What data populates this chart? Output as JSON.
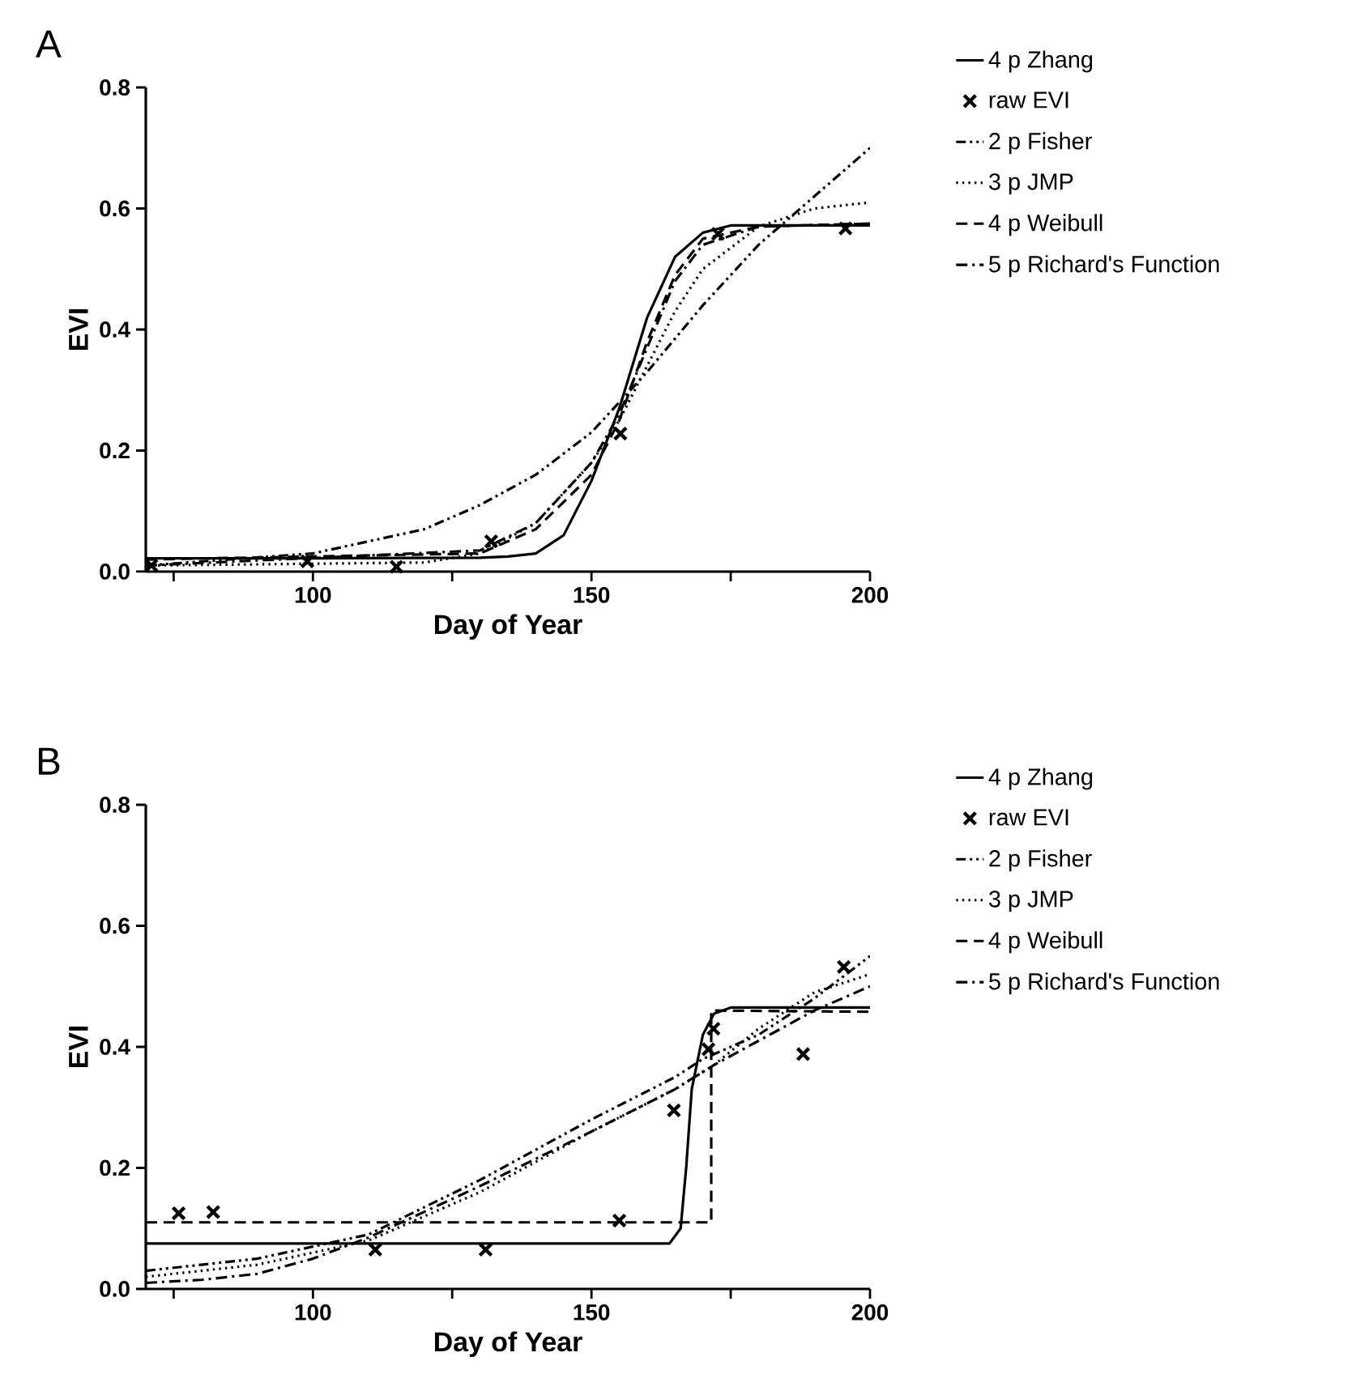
{
  "chart_data": [
    {
      "type": "line",
      "title": "A",
      "xlabel": "Day of Year",
      "ylabel": "EVI",
      "xlim": [
        70,
        200
      ],
      "ylim": [
        0,
        0.8
      ],
      "xticks": [
        {
          "value": 75,
          "label": null
        },
        100,
        {
          "value": 125,
          "label": null
        },
        150,
        {
          "value": 175,
          "label": null
        },
        200
      ],
      "yticks": [
        {
          "value": 0,
          "label": "0.0"
        },
        0.2,
        0.4,
        0.6,
        0.8
      ],
      "legend": "right",
      "series": [
        {
          "name": "4 p Zhang",
          "color": "#000000",
          "line_style": "solid",
          "x": [
            70,
            100,
            130,
            135,
            140,
            145,
            150,
            155,
            160,
            165,
            170,
            175,
            180,
            200
          ],
          "values": [
            0.022,
            0.022,
            0.023,
            0.025,
            0.03,
            0.06,
            0.15,
            0.27,
            0.42,
            0.52,
            0.56,
            0.572,
            0.572,
            0.572
          ]
        },
        {
          "name": "raw EVI",
          "type": "scatter",
          "marker": "cross",
          "color": "#000000",
          "x": [
            71,
            99,
            115,
            132,
            155.2,
            172.7,
            195.6
          ],
          "values": [
            0.01,
            0.017,
            0.008,
            0.05,
            0.228,
            0.558,
            0.567
          ]
        },
        {
          "name": "2 p Fisher",
          "color": "#000000",
          "line_style": "dashdotdot",
          "x": [
            70,
            100,
            120,
            130,
            140,
            150,
            160,
            170,
            180,
            190,
            200
          ],
          "values": [
            0.01,
            0.03,
            0.07,
            0.11,
            0.16,
            0.23,
            0.33,
            0.44,
            0.54,
            0.62,
            0.7
          ]
        },
        {
          "name": "3 p JMP",
          "color": "#000000",
          "line_style": "dotted",
          "x": [
            70,
            120,
            130,
            140,
            150,
            155,
            160,
            165,
            170,
            180,
            190,
            200
          ],
          "values": [
            0.01,
            0.015,
            0.03,
            0.08,
            0.18,
            0.25,
            0.34,
            0.43,
            0.5,
            0.57,
            0.6,
            0.61
          ]
        },
        {
          "name": "4 p Weibull",
          "color": "#000000",
          "line_style": "dashed",
          "x": [
            70,
            130,
            140,
            150,
            155,
            160,
            165,
            170,
            180,
            200
          ],
          "values": [
            0.02,
            0.03,
            0.07,
            0.16,
            0.25,
            0.38,
            0.49,
            0.55,
            0.57,
            0.575
          ]
        },
        {
          "name": "5 p Richard's Function",
          "color": "#000000",
          "line_style": "dashdot",
          "x": [
            70,
            130,
            140,
            150,
            155,
            160,
            165,
            170,
            180,
            200
          ],
          "values": [
            0.01,
            0.035,
            0.08,
            0.18,
            0.26,
            0.37,
            0.48,
            0.54,
            0.57,
            0.575
          ]
        }
      ]
    },
    {
      "type": "line",
      "title": "B",
      "xlabel": "Day of Year",
      "ylabel": "EVI",
      "xlim": [
        70,
        200
      ],
      "ylim": [
        0,
        0.8
      ],
      "xticks": [
        {
          "value": 75,
          "label": null
        },
        100,
        {
          "value": 125,
          "label": null
        },
        150,
        {
          "value": 175,
          "label": null
        },
        200
      ],
      "yticks": [
        {
          "value": 0,
          "label": "0.0"
        },
        0.2,
        0.4,
        0.6,
        0.8
      ],
      "legend": "right",
      "series": [
        {
          "name": "4 p Zhang",
          "color": "#000000",
          "line_style": "solid",
          "x": [
            70,
            164,
            166,
            167,
            168,
            170,
            172,
            175,
            200
          ],
          "values": [
            0.075,
            0.075,
            0.1,
            0.2,
            0.33,
            0.42,
            0.455,
            0.465,
            0.465
          ]
        },
        {
          "name": "raw EVI",
          "type": "scatter",
          "marker": "cross",
          "color": "#000000",
          "x": [
            75.9,
            82.1,
            111.2,
            131,
            155,
            164.8,
            171,
            171.9,
            188,
            195.3
          ],
          "values": [
            0.125,
            0.127,
            0.065,
            0.065,
            0.113,
            0.295,
            0.396,
            0.43,
            0.388,
            0.532
          ]
        },
        {
          "name": "2 p Fisher",
          "color": "#000000",
          "line_style": "dashdotdot",
          "x": [
            70,
            90,
            110,
            130,
            150,
            165,
            170,
            180,
            190,
            200
          ],
          "values": [
            0.03,
            0.05,
            0.09,
            0.18,
            0.28,
            0.35,
            0.38,
            0.42,
            0.48,
            0.55
          ]
        },
        {
          "name": "3 p JMP",
          "color": "#000000",
          "line_style": "dotted",
          "x": [
            70,
            90,
            110,
            130,
            150,
            165,
            172,
            180,
            190,
            200
          ],
          "values": [
            0.02,
            0.04,
            0.08,
            0.16,
            0.26,
            0.33,
            0.37,
            0.43,
            0.49,
            0.52
          ]
        },
        {
          "name": "4 p Weibull",
          "color": "#000000",
          "line_style": "dashed",
          "x": [
            70,
            171.5,
            171.5,
            200
          ],
          "values": [
            0.11,
            0.11,
            0.46,
            0.458
          ]
        },
        {
          "name": "5 p Richard's  Function",
          "color": "#000000",
          "line_style": "dashdot",
          "x": [
            70,
            80,
            90,
            100,
            110,
            130,
            150,
            165,
            172,
            180,
            190,
            200
          ],
          "values": [
            0.01,
            0.015,
            0.025,
            0.05,
            0.085,
            0.17,
            0.26,
            0.33,
            0.37,
            0.41,
            0.46,
            0.5
          ]
        }
      ]
    }
  ]
}
